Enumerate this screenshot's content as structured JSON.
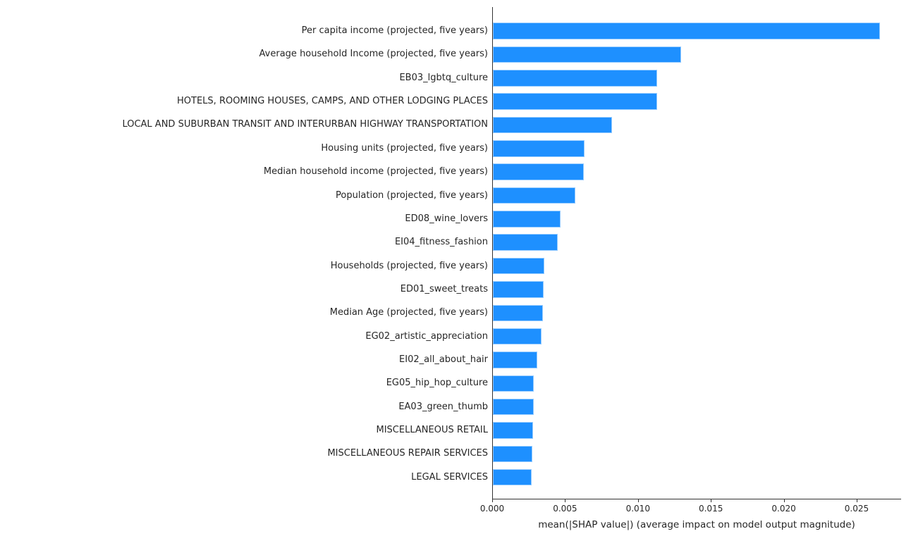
{
  "chart_data": {
    "type": "bar",
    "orientation": "horizontal",
    "title": "",
    "xlabel": "mean(|SHAP value|) (average impact on model output magnitude)",
    "ylabel": "",
    "xlim": [
      0,
      0.028
    ],
    "grid": false,
    "legend": null,
    "bar_color": "#1e90ff",
    "axis_color": "#333333",
    "text_color": "#262626",
    "x_ticks": [
      0.0,
      0.005,
      0.01,
      0.015,
      0.02,
      0.025
    ],
    "x_tick_labels": [
      "0.000",
      "0.005",
      "0.010",
      "0.015",
      "0.020",
      "0.025"
    ],
    "categories": [
      "Per capita income (projected, five years)",
      "Average household Income (projected, five years)",
      "EB03_lgbtq_culture",
      "HOTELS, ROOMING HOUSES, CAMPS, AND OTHER LODGING PLACES",
      "LOCAL AND SUBURBAN TRANSIT AND INTERURBAN HIGHWAY TRANSPORTATION",
      "Housing units (projected, five years)",
      "Median household income (projected, five years)",
      "Population (projected, five years)",
      "ED08_wine_lovers",
      "EI04_fitness_fashion",
      "Households (projected, five years)",
      "ED01_sweet_treats",
      "Median Age (projected, five years)",
      "EG02_artistic_appreciation",
      "EI02_all_about_hair",
      "EG05_hip_hop_culture",
      "EA03_green_thumb",
      "MISCELLANEOUS RETAIL",
      "MISCELLANEOUS REPAIR SERVICES",
      "LEGAL SERVICES"
    ],
    "values": [
      0.02656,
      0.01291,
      0.01125,
      0.01125,
      0.00817,
      0.00631,
      0.00622,
      0.00564,
      0.00462,
      0.00443,
      0.00355,
      0.00349,
      0.00344,
      0.00336,
      0.00304,
      0.00282,
      0.00282,
      0.00274,
      0.00269,
      0.00268
    ]
  }
}
